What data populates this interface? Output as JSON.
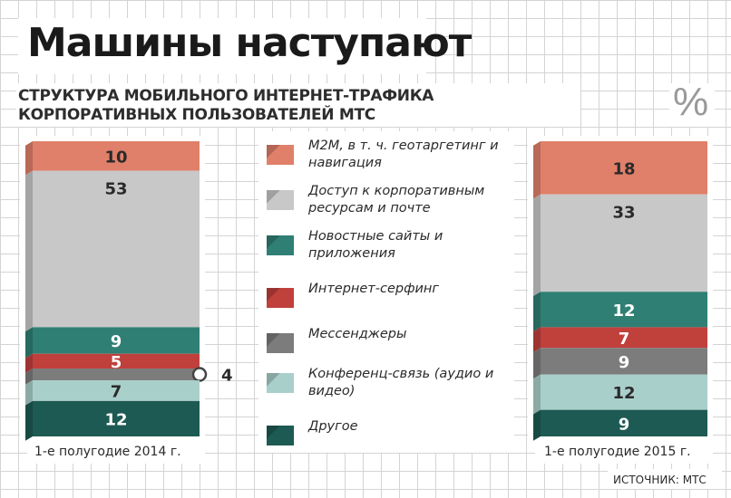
{
  "header": {
    "title": "Машины наступают",
    "subtitle": "СТРУКТУРА МОБИЛЬНОГО ИНТЕРНЕТ-ТРАФИКА КОРПОРАТИВНЫХ ПОЛЬЗОВАТЕЛЕЙ МТС",
    "unit_symbol": "%"
  },
  "source": "ИСТОЧНИК: МТС",
  "colors": {
    "m2m": "#e0806a",
    "corporate": "#c8c8c8",
    "news": "#2f7f74",
    "surfing": "#c0403c",
    "messengers": "#7c7c7c",
    "conference": "#a9cfcb",
    "other": "#1d5a53"
  },
  "legend": [
    {
      "key": "m2m",
      "label": "M2M, в т. ч. геотаргетинг и навигация"
    },
    {
      "key": "corporate",
      "label": "Доступ к корпоративным ресурсам и почте"
    },
    {
      "key": "news",
      "label": "Новостные сайты и приложения"
    },
    {
      "key": "surfing",
      "label": "Интернет-серфинг"
    },
    {
      "key": "messengers",
      "label": "Мессенджеры"
    },
    {
      "key": "conference",
      "label": "Конференц-связь (аудио и видео)"
    },
    {
      "key": "other",
      "label": "Другое"
    }
  ],
  "chart_data": {
    "type": "bar",
    "stacked": true,
    "categories": [
      "1-е полугодие 2014 г.",
      "1-е полугодие 2015 г."
    ],
    "series": [
      {
        "name": "M2M, в т. ч. геотаргетинг и навигация",
        "key": "m2m",
        "values": [
          10,
          18
        ]
      },
      {
        "name": "Доступ к корпоративным ресурсам и почте",
        "key": "corporate",
        "values": [
          53,
          33
        ]
      },
      {
        "name": "Новостные сайты и приложения",
        "key": "news",
        "values": [
          9,
          12
        ]
      },
      {
        "name": "Интернет-серфинг",
        "key": "surfing",
        "values": [
          5,
          7
        ]
      },
      {
        "name": "Мессенджеры",
        "key": "messengers",
        "values": [
          4,
          9
        ]
      },
      {
        "name": "Конференц-связь (аудио и видео)",
        "key": "conference",
        "values": [
          7,
          12
        ]
      },
      {
        "name": "Другое",
        "key": "other",
        "values": [
          12,
          9
        ]
      }
    ],
    "callouts": [
      {
        "category_index": 0,
        "series_key": "messengers",
        "label": "4"
      }
    ],
    "ylim": [
      0,
      100
    ]
  }
}
